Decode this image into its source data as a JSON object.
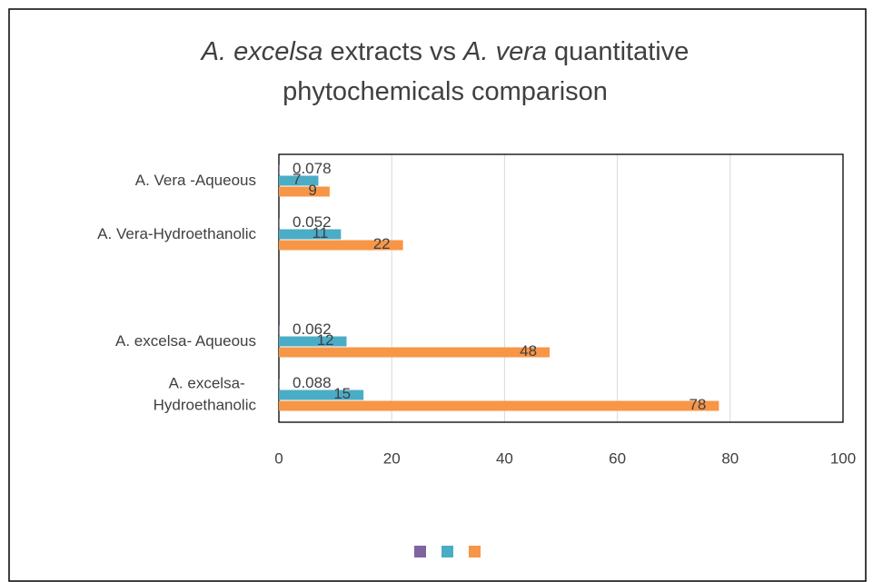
{
  "chart_data": {
    "type": "bar",
    "orientation": "horizontal",
    "title_lines": [
      [
        {
          "text": "A. excelsa",
          "italic": true
        },
        {
          "text": " extracts vs ",
          "italic": false
        },
        {
          "text": "A. vera",
          "italic": true
        },
        {
          "text": " quantitative",
          "italic": false
        }
      ],
      [
        {
          "text": "phytochemicals comparison",
          "italic": false
        }
      ]
    ],
    "categories": [
      "A. Vera -Aqueous",
      "A. Vera-Hydroethanolic",
      null,
      "A. excelsa- Aqueous",
      "A. excelsa- Hydroethanolic"
    ],
    "series": [
      {
        "color": "#8064a2",
        "values": [
          0.078,
          0.052,
          null,
          0.062,
          0.088
        ]
      },
      {
        "color": "#4bacc6",
        "values": [
          7,
          11,
          null,
          12,
          15
        ]
      },
      {
        "color": "#f79646",
        "values": [
          9,
          22,
          null,
          48,
          78
        ]
      }
    ],
    "xlim": [
      0,
      100
    ],
    "xticks": [
      0,
      20,
      40,
      60,
      80,
      100
    ],
    "grid": true,
    "legend": "bottom"
  }
}
